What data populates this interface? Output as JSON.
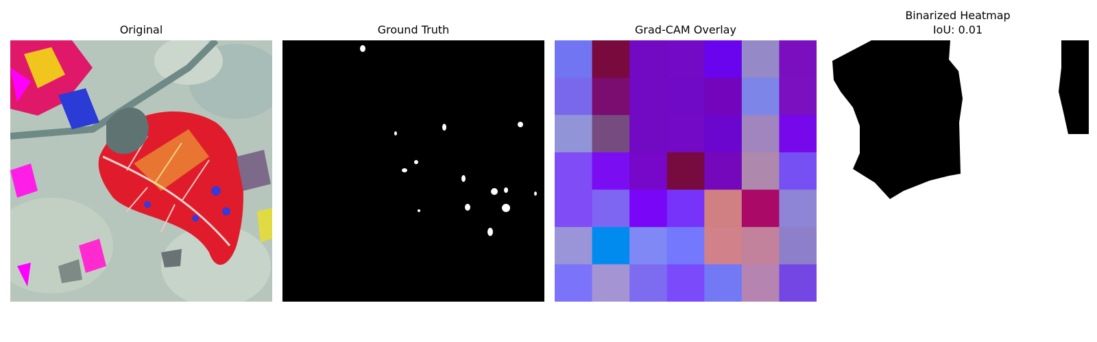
{
  "panels": [
    {
      "title": "Original"
    },
    {
      "title": "Ground Truth"
    },
    {
      "title": "Grad-CAM Overlay"
    },
    {
      "title": "Binarized Heatmap",
      "subtitle": "IoU: 0.01"
    }
  ],
  "gradcam": {
    "grid": [
      [
        "#7175f2",
        "#780a3d",
        "#7209c3",
        "#730ac6",
        "#6a04ef",
        "#958ac7",
        "#7b0fc0"
      ],
      [
        "#7a68ec",
        "#7b0c70",
        "#7209c3",
        "#710ac6",
        "#7305bc",
        "#7d85e8",
        "#7a10c0"
      ],
      [
        "#9294d8",
        "#764b80",
        "#7209c3",
        "#730ac6",
        "#6b06cf",
        "#a085be",
        "#7708eb"
      ],
      [
        "#7f4cf6",
        "#7b0df3",
        "#7708c9",
        "#770a3f",
        "#7408ba",
        "#ae88ad",
        "#7650f2"
      ],
      [
        "#7f4cf6",
        "#7f66f2",
        "#7a06f7",
        "#7733f9",
        "#d08082",
        "#ab0968",
        "#8f85d6"
      ],
      [
        "#9a94d8",
        "#028bef",
        "#7f88f5",
        "#7378fd",
        "#d08189",
        "#c3829c",
        "#8d7fca"
      ],
      [
        "#7c73fb",
        "#a594d4",
        "#7d6cf0",
        "#7b4bfb",
        "#7378f5",
        "#b684b1",
        "#7447e5"
      ]
    ]
  }
}
